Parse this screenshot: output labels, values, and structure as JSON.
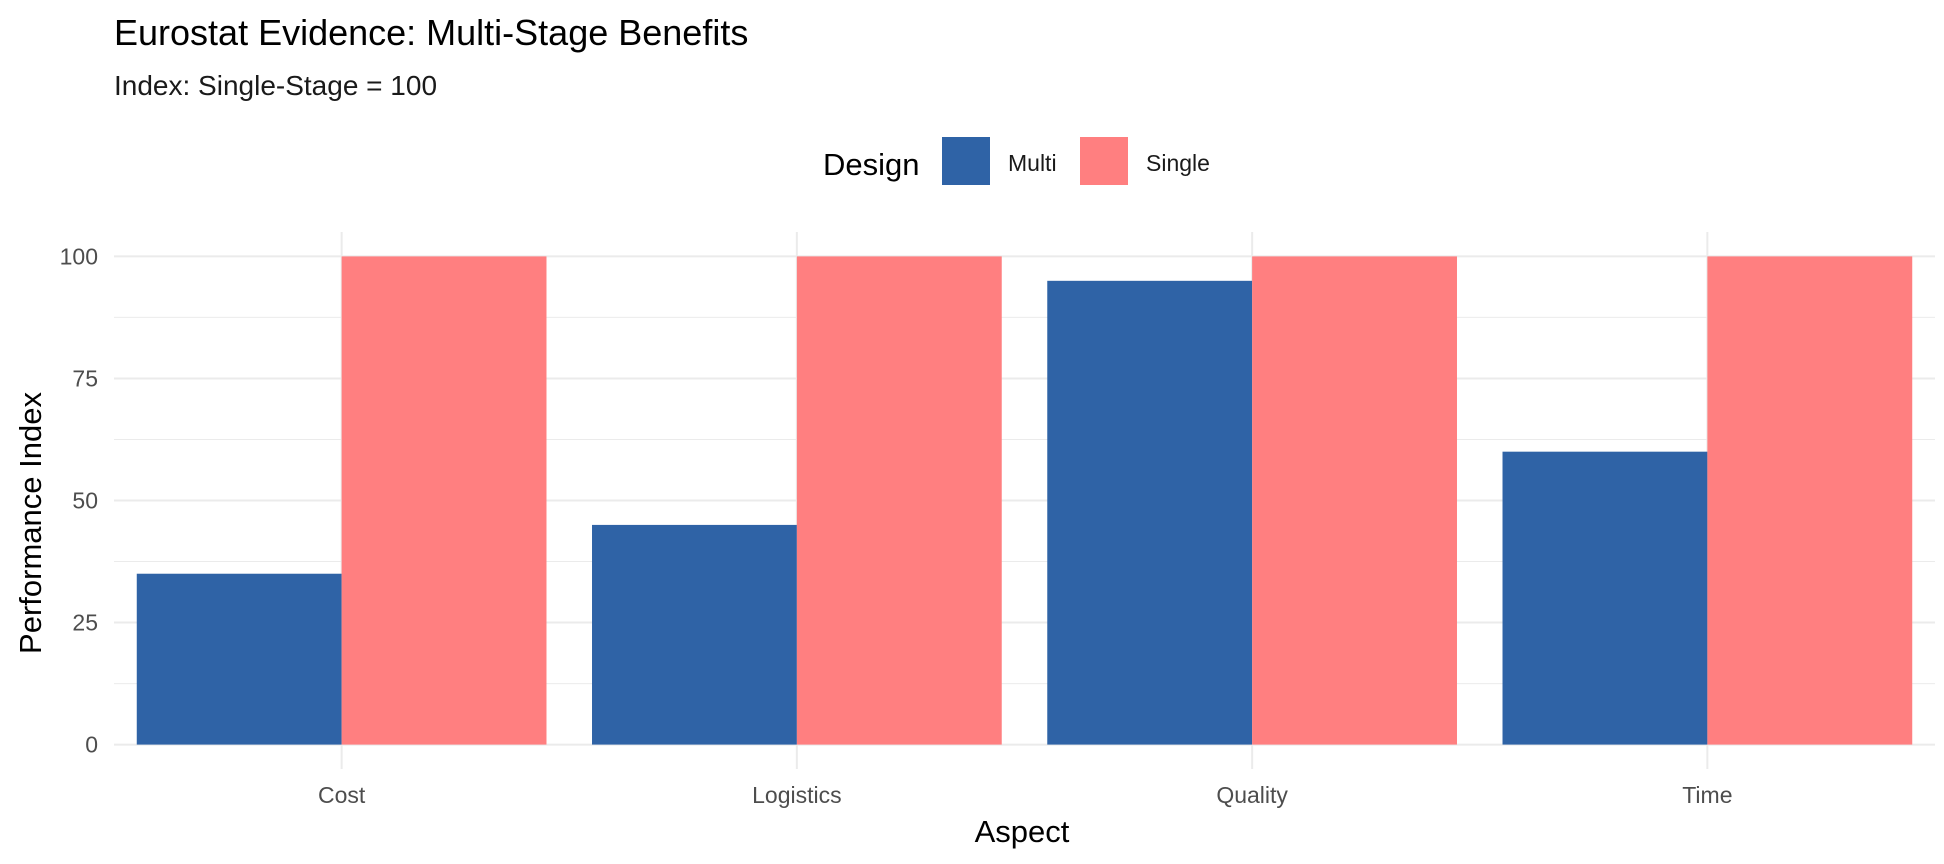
{
  "chart_data": {
    "type": "bar",
    "title": "Eurostat Evidence: Multi-Stage Benefits",
    "subtitle": "Index: Single-Stage = 100",
    "xlabel": "Aspect",
    "ylabel": "Performance Index",
    "categories": [
      "Cost",
      "Logistics",
      "Quality",
      "Time"
    ],
    "series": [
      {
        "name": "Multi",
        "values": [
          35,
          45,
          95,
          60
        ]
      },
      {
        "name": "Single",
        "values": [
          100,
          100,
          100,
          100
        ]
      }
    ],
    "ylim": [
      -5,
      105
    ],
    "yticks": [
      0,
      25,
      50,
      75,
      100
    ],
    "grid": true,
    "legend": {
      "title": "Design",
      "position": "top"
    },
    "colors": {
      "Multi": "#2f63a6",
      "Single": "#ff7f80",
      "grid": "#ebebeb"
    }
  }
}
